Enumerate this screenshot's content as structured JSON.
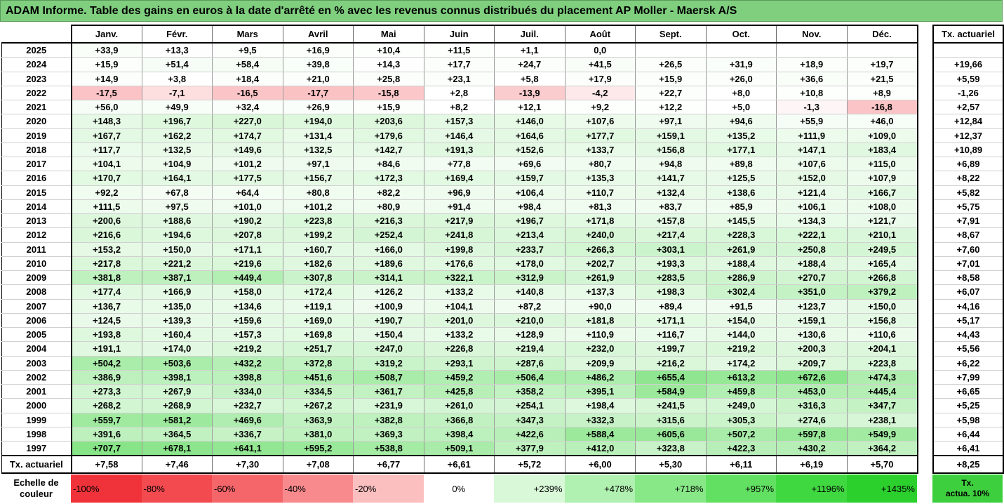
{
  "title": "ADAM Informe. Table des gains en euros à la date d'arrêté en % avec les revenus connus distribués du placement AP Moller - Maersk A/S",
  "months": [
    "Janv.",
    "Févr.",
    "Mars",
    "Avril",
    "Mai",
    "Juin",
    "Juil.",
    "Août",
    "Sept.",
    "Oct.",
    "Nov.",
    "Déc."
  ],
  "tx_header": "Tx. actuariel",
  "rows": [
    {
      "year": "2025",
      "values": [
        "+33,9",
        "+13,3",
        "+9,5",
        "+16,9",
        "+10,4",
        "+11,5",
        "+1,1",
        "0,0",
        "",
        "",
        "",
        ""
      ],
      "tx": ""
    },
    {
      "year": "2024",
      "values": [
        "+15,9",
        "+51,4",
        "+58,4",
        "+39,8",
        "+14,3",
        "+17,7",
        "+24,7",
        "+41,5",
        "+26,5",
        "+31,9",
        "+18,9",
        "+19,7"
      ],
      "tx": "+19,66"
    },
    {
      "year": "2023",
      "values": [
        "+14,9",
        "+3,8",
        "+18,4",
        "+21,0",
        "+25,8",
        "+23,1",
        "+5,8",
        "+17,9",
        "+15,9",
        "+26,0",
        "+36,6",
        "+21,5"
      ],
      "tx": "+5,59"
    },
    {
      "year": "2022",
      "values": [
        "-17,5",
        "-7,1",
        "-16,5",
        "-17,7",
        "-15,8",
        "+2,8",
        "-13,9",
        "-4,2",
        "+22,7",
        "+8,0",
        "+10,8",
        "+8,9"
      ],
      "tx": "-1,26"
    },
    {
      "year": "2021",
      "values": [
        "+56,0",
        "+49,9",
        "+32,4",
        "+26,9",
        "+15,9",
        "+8,2",
        "+12,1",
        "+9,2",
        "+12,2",
        "+5,0",
        "-1,3",
        "-16,8"
      ],
      "tx": "+2,57"
    },
    {
      "year": "2020",
      "values": [
        "+148,3",
        "+196,7",
        "+227,0",
        "+194,0",
        "+203,6",
        "+157,3",
        "+146,0",
        "+107,6",
        "+97,1",
        "+94,6",
        "+55,9",
        "+46,0"
      ],
      "tx": "+12,84"
    },
    {
      "year": "2019",
      "values": [
        "+167,7",
        "+162,2",
        "+174,7",
        "+131,4",
        "+179,6",
        "+146,4",
        "+164,6",
        "+177,7",
        "+159,1",
        "+135,2",
        "+111,9",
        "+109,0"
      ],
      "tx": "+12,37"
    },
    {
      "year": "2018",
      "values": [
        "+117,7",
        "+132,5",
        "+149,6",
        "+132,5",
        "+142,7",
        "+191,3",
        "+152,6",
        "+133,7",
        "+156,8",
        "+177,1",
        "+147,1",
        "+183,4"
      ],
      "tx": "+10,89"
    },
    {
      "year": "2017",
      "values": [
        "+104,1",
        "+104,9",
        "+101,2",
        "+97,1",
        "+84,6",
        "+77,8",
        "+69,6",
        "+80,7",
        "+94,8",
        "+89,8",
        "+107,6",
        "+115,0"
      ],
      "tx": "+6,89"
    },
    {
      "year": "2016",
      "values": [
        "+170,7",
        "+164,1",
        "+177,5",
        "+156,7",
        "+172,3",
        "+169,4",
        "+159,7",
        "+135,3",
        "+141,7",
        "+125,5",
        "+152,0",
        "+107,9"
      ],
      "tx": "+8,22"
    },
    {
      "year": "2015",
      "values": [
        "+92,2",
        "+67,8",
        "+64,4",
        "+80,8",
        "+82,2",
        "+96,9",
        "+106,4",
        "+110,7",
        "+132,4",
        "+138,6",
        "+121,4",
        "+166,7"
      ],
      "tx": "+5,82"
    },
    {
      "year": "2014",
      "values": [
        "+111,5",
        "+97,5",
        "+101,0",
        "+101,2",
        "+80,9",
        "+91,4",
        "+98,4",
        "+81,3",
        "+83,7",
        "+85,9",
        "+106,1",
        "+108,0"
      ],
      "tx": "+5,75"
    },
    {
      "year": "2013",
      "values": [
        "+200,6",
        "+188,6",
        "+190,2",
        "+223,8",
        "+216,3",
        "+217,9",
        "+196,7",
        "+171,8",
        "+157,8",
        "+145,5",
        "+134,3",
        "+121,7"
      ],
      "tx": "+7,91"
    },
    {
      "year": "2012",
      "values": [
        "+216,6",
        "+194,6",
        "+207,8",
        "+199,2",
        "+252,4",
        "+241,8",
        "+213,4",
        "+240,0",
        "+217,4",
        "+228,3",
        "+222,1",
        "+210,1"
      ],
      "tx": "+8,67"
    },
    {
      "year": "2011",
      "values": [
        "+153,2",
        "+150,0",
        "+171,1",
        "+160,7",
        "+166,0",
        "+199,8",
        "+233,7",
        "+266,3",
        "+303,1",
        "+261,9",
        "+250,8",
        "+249,5"
      ],
      "tx": "+7,60"
    },
    {
      "year": "2010",
      "values": [
        "+217,8",
        "+221,2",
        "+219,6",
        "+182,6",
        "+189,6",
        "+176,6",
        "+178,0",
        "+202,7",
        "+193,3",
        "+188,4",
        "+188,4",
        "+165,4"
      ],
      "tx": "+7,01"
    },
    {
      "year": "2009",
      "values": [
        "+381,8",
        "+387,1",
        "+449,4",
        "+307,8",
        "+314,1",
        "+322,1",
        "+312,9",
        "+261,9",
        "+283,5",
        "+286,9",
        "+270,7",
        "+266,8"
      ],
      "tx": "+8,58"
    },
    {
      "year": "2008",
      "values": [
        "+177,4",
        "+166,9",
        "+158,0",
        "+172,4",
        "+126,2",
        "+133,2",
        "+140,8",
        "+137,3",
        "+198,3",
        "+302,4",
        "+351,0",
        "+379,2"
      ],
      "tx": "+6,07"
    },
    {
      "year": "2007",
      "values": [
        "+136,7",
        "+135,0",
        "+134,6",
        "+119,1",
        "+100,9",
        "+104,1",
        "+87,2",
        "+90,0",
        "+89,4",
        "+91,5",
        "+123,7",
        "+150,0"
      ],
      "tx": "+4,16"
    },
    {
      "year": "2006",
      "values": [
        "+124,5",
        "+139,3",
        "+159,6",
        "+169,0",
        "+190,7",
        "+201,0",
        "+210,0",
        "+181,8",
        "+171,1",
        "+154,0",
        "+159,1",
        "+156,8"
      ],
      "tx": "+5,17"
    },
    {
      "year": "2005",
      "values": [
        "+193,8",
        "+160,4",
        "+157,3",
        "+169,8",
        "+150,4",
        "+133,2",
        "+128,9",
        "+110,9",
        "+116,7",
        "+144,0",
        "+130,6",
        "+110,6"
      ],
      "tx": "+4,43"
    },
    {
      "year": "2004",
      "values": [
        "+191,1",
        "+174,0",
        "+219,2",
        "+251,7",
        "+247,0",
        "+226,8",
        "+219,4",
        "+232,0",
        "+199,7",
        "+219,2",
        "+200,3",
        "+204,1"
      ],
      "tx": "+5,56"
    },
    {
      "year": "2003",
      "values": [
        "+504,2",
        "+503,6",
        "+432,2",
        "+372,8",
        "+319,2",
        "+293,1",
        "+287,6",
        "+209,9",
        "+216,2",
        "+174,2",
        "+209,7",
        "+223,8"
      ],
      "tx": "+6,22"
    },
    {
      "year": "2002",
      "values": [
        "+386,9",
        "+398,1",
        "+398,8",
        "+451,6",
        "+508,7",
        "+459,2",
        "+506,4",
        "+486,2",
        "+655,4",
        "+613,2",
        "+672,6",
        "+474,3"
      ],
      "tx": "+7,99"
    },
    {
      "year": "2001",
      "values": [
        "+273,3",
        "+267,9",
        "+334,0",
        "+334,5",
        "+361,7",
        "+425,8",
        "+358,2",
        "+395,1",
        "+584,9",
        "+459,8",
        "+453,0",
        "+445,4"
      ],
      "tx": "+6,65"
    },
    {
      "year": "2000",
      "values": [
        "+268,2",
        "+268,9",
        "+232,7",
        "+267,2",
        "+231,9",
        "+261,0",
        "+254,1",
        "+198,4",
        "+241,5",
        "+249,0",
        "+316,3",
        "+347,7"
      ],
      "tx": "+5,25"
    },
    {
      "year": "1999",
      "values": [
        "+559,7",
        "+581,2",
        "+469,6",
        "+363,9",
        "+382,8",
        "+366,8",
        "+347,3",
        "+332,3",
        "+315,6",
        "+305,3",
        "+274,6",
        "+238,1"
      ],
      "tx": "+5,98"
    },
    {
      "year": "1998",
      "values": [
        "+391,6",
        "+364,5",
        "+336,7",
        "+381,0",
        "+369,3",
        "+398,4",
        "+422,6",
        "+588,4",
        "+605,6",
        "+507,2",
        "+597,8",
        "+549,9"
      ],
      "tx": "+6,44"
    },
    {
      "year": "1997",
      "values": [
        "+707,7",
        "+678,1",
        "+641,1",
        "+595,2",
        "+538,8",
        "+509,1",
        "+377,9",
        "+412,0",
        "+323,8",
        "+422,3",
        "+430,2",
        "+364,2"
      ],
      "tx": "+6,41"
    }
  ],
  "footer": {
    "label": "Tx. actuariel",
    "values": [
      "+7,58",
      "+7,46",
      "+7,30",
      "+7,08",
      "+6,77",
      "+6,61",
      "+5,72",
      "+6,00",
      "+5,30",
      "+6,11",
      "+6,19",
      "+5,70"
    ],
    "tx": "+8,25"
  },
  "legend": {
    "title_line1": "Echelle de",
    "title_line2": "couleur",
    "swatches": [
      {
        "label": "-100%",
        "color": "#f0333a",
        "kind": "neg"
      },
      {
        "label": "-80%",
        "color": "#f24a4f",
        "kind": "neg"
      },
      {
        "label": "-60%",
        "color": "#f5666b",
        "kind": "neg"
      },
      {
        "label": "-40%",
        "color": "#f88a8d",
        "kind": "neg"
      },
      {
        "label": "-20%",
        "color": "#fbbfc0",
        "kind": "neg"
      },
      {
        "label": "0%",
        "color": "#ffffff",
        "kind": "zero"
      },
      {
        "label": "+239%",
        "color": "#d8f8d8",
        "kind": "pos"
      },
      {
        "label": "+478%",
        "color": "#b0f0b0",
        "kind": "pos"
      },
      {
        "label": "+718%",
        "color": "#88e888",
        "kind": "pos"
      },
      {
        "label": "+957%",
        "color": "#62e062",
        "kind": "pos"
      },
      {
        "label": "+1196%",
        "color": "#40d840",
        "kind": "pos"
      },
      {
        "label": "+1435%",
        "color": "#2cd02c",
        "kind": "pos"
      }
    ],
    "tx_line1": "Tx.",
    "tx_line2": "actua. 10%",
    "tx_color": "#3ecf3e"
  }
}
